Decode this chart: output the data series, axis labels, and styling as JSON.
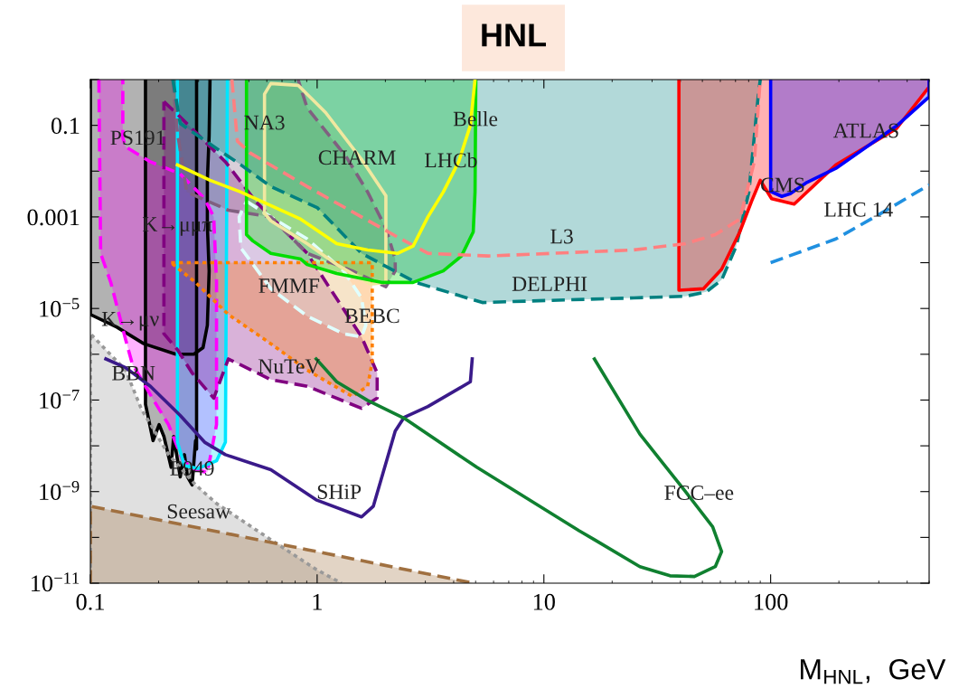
{
  "chart_data": {
    "type": "line",
    "title": "HNL",
    "xlabel": "M$_{HNL}$,  GeV",
    "log": "xy",
    "xlim": [
      0.1,
      500
    ],
    "ylim": [
      1e-11,
      1
    ],
    "xticks": [
      0.1,
      1,
      10,
      100
    ],
    "yticks": [
      {
        "value": 1e-11,
        "label": "10$^{−11}$"
      },
      {
        "value": 1e-10,
        "label": null
      },
      {
        "value": 1e-09,
        "label": "10$^{−9}$"
      },
      {
        "value": 1e-08,
        "label": null
      },
      {
        "value": 1e-07,
        "label": "10$^{−7}$"
      },
      {
        "value": 1e-06,
        "label": null
      },
      {
        "value": 1e-05,
        "label": "10$^{−5}$"
      },
      {
        "value": 0.0001,
        "label": null
      },
      {
        "value": 0.001,
        "label": "0.001"
      },
      {
        "value": 0.01,
        "label": null
      },
      {
        "value": 0.1,
        "label": "0.1"
      },
      {
        "value": 1,
        "label": null
      }
    ],
    "grid": false,
    "series": [
      {
        "type": "area",
        "color": "#000000",
        "line_style": "solid",
        "x": [
          0.1,
          0.1,
          0.131,
          0.172,
          0.238,
          0.286,
          0.314,
          0.328,
          0.334,
          0.328,
          0.328,
          0.334,
          0.337
        ],
        "values": [
          1,
          7.4e-06,
          3.9e-06,
          1.7e-06,
          1e-06,
          1e-06,
          1.4e-06,
          4.3e-06,
          6.6e-05,
          0.00065,
          0.0063,
          0.06,
          1
        ]
      },
      {
        "type": "area",
        "color": "#000000",
        "line_style": "solid",
        "x": [
          0.175,
          0.175,
          0.189,
          0.201,
          0.211,
          0.227,
          0.233,
          0.249,
          0.26,
          0.268,
          0.281,
          0.291,
          0.294,
          0.294
        ],
        "values": [
          1,
          8.1e-08,
          1.3e-08,
          2.9e-08,
          1.6e-08,
          3.4e-09,
          1.6e-08,
          2.1e-09,
          6.4e-09,
          2.1e-09,
          1.4e-09,
          1.3e-08,
          8.5e-09,
          1
        ]
      },
      {
        "type": "area",
        "color": "#999999",
        "line_style": "dotted",
        "x": [
          0.1,
          0.1,
          0.143,
          0.168,
          0.221,
          0.291,
          0.36,
          0.625,
          0.99,
          1.28
        ],
        "values": [
          1e-11,
          2.8e-06,
          4.5e-07,
          6.3e-08,
          6.5e-09,
          1.4e-09,
          5.5e-10,
          8.9e-11,
          2e-11,
          1e-11
        ]
      },
      {
        "type": "area",
        "color": "#a07040",
        "line_style": "dashed",
        "x": [
          0.1,
          0.1,
          0.904,
          4.88
        ],
        "values": [
          1e-11,
          4.8e-10,
          5.4e-11,
          1e-11
        ]
      },
      {
        "type": "area",
        "color": "#ff00ff",
        "line_style": "dashed",
        "x": [
          0.109,
          0.111,
          0.123,
          0.143,
          0.153,
          0.184,
          0.221,
          0.256,
          0.291,
          0.328,
          0.36,
          0.36,
          0.36,
          0.35,
          0.319,
          0.249,
          0.184,
          0.143,
          0.139,
          0.139
        ],
        "values": [
          1,
          0.00016,
          3.7e-05,
          2.1e-06,
          6.2e-07,
          1.3e-07,
          2.9e-08,
          4.7e-09,
          3e-09,
          2.6e-09,
          2.9e-08,
          4.3e-06,
          3.7e-05,
          0.001,
          0.0025,
          0.0087,
          0.016,
          0.034,
          0.054,
          1
        ]
      },
      {
        "type": "area",
        "color": "#00e5ff",
        "line_style": "solid",
        "x": [
          0.242,
          0.242,
          0.26,
          0.299,
          0.36,
          0.394,
          0.402
        ],
        "values": [
          1,
          1.2e-08,
          3.7e-09,
          3.2e-09,
          4.7e-09,
          1.2e-08,
          1
        ]
      },
      {
        "type": "area",
        "color": "#800080",
        "line_style": "dashed",
        "x": [
          0.211,
          0.242,
          0.394,
          0.535,
          0.904,
          1.57,
          1.84,
          1.84,
          1.57,
          0.904,
          0.625,
          0.406,
          0.35,
          0.281,
          0.242,
          0.211
        ],
        "values": [
          0.33,
          0.175,
          0.016,
          0.0022,
          0.00016,
          2.4e-06,
          3.9e-07,
          1.1e-07,
          6.6e-08,
          2e-07,
          2.8e-07,
          7.9e-07,
          1.1e-07,
          3.9e-07,
          1.26e-06,
          2.8e-06
        ]
      },
      {
        "type": "area",
        "color": "#ff8000",
        "line_style": "dotted",
        "x": [
          0.227,
          1.75,
          1.75,
          1.67,
          1.43,
          0.904,
          0.625,
          0.406,
          0.291
        ],
        "values": [
          0.0001,
          0.0001,
          6.9e-07,
          2e-07,
          1.2e-07,
          4.5e-07,
          1.7e-06,
          7.4e-06,
          3.7e-05
        ]
      },
      {
        "type": "area",
        "color": "#e0ffff",
        "line_style": "dashed",
        "x": [
          0.488,
          0.625,
          0.904,
          1.31,
          1.57,
          1.64,
          1.57,
          1.31,
          0.904,
          0.625,
          0.461,
          0.453
        ],
        "values": [
          0.0022,
          0.001,
          0.00033,
          6.6e-05,
          1.7e-05,
          4.3e-06,
          2.4e-06,
          2.8e-06,
          6.8e-06,
          2.7e-05,
          0.00021,
          0.001
        ]
      },
      {
        "type": "area",
        "color": "#806080",
        "line_style": "dashed",
        "x": [
          0.231,
          0.242,
          0.266,
          0.406,
          0.625,
          0.904,
          1.43,
          2.01,
          2.21,
          2.21,
          2.01,
          1.67,
          1.34,
          0.904,
          0.824
        ],
        "values": [
          1,
          0.071,
          0.0035,
          0.0014,
          0.001,
          0.00016,
          6.6e-05,
          3e-05,
          6.6e-05,
          0.00012,
          0.00056,
          0.0035,
          0.021,
          0.24,
          1
        ]
      },
      {
        "type": "area",
        "color": "#f0e8a0",
        "line_style": "solid",
        "x": [
          0.586,
          0.586,
          0.625,
          0.824,
          1.09,
          1.57,
          2.01,
          2.01,
          1.72,
          1.22,
          0.904,
          0.625
        ],
        "values": [
          0.0012,
          0.48,
          0.82,
          0.75,
          0.19,
          0.018,
          0.0029,
          3.7e-05,
          3.4e-05,
          9.1e-05,
          0.00026,
          0.00082
        ]
      },
      {
        "type": "area",
        "color": "#00dd00",
        "line_style": "solid",
        "x": [
          0.488,
          0.488,
          0.52,
          0.625,
          0.847,
          0.904,
          1.22,
          1.94,
          2.65,
          3.6,
          4.33,
          4.88,
          4.97,
          5.01
        ],
        "values": [
          1,
          0.00041,
          0.0003,
          0.00016,
          0.00012,
          9.1e-05,
          5.8e-05,
          3.7e-05,
          3.7e-05,
          6.6e-05,
          0.00014,
          0.00047,
          0.0035,
          1
        ]
      },
      {
        "type": "area",
        "color": "#008080",
        "line_style": "dashed",
        "x": [
          0.231,
          0.249,
          0.337,
          0.461,
          0.625,
          1.0,
          1.57,
          2.73,
          5.35,
          10.6,
          24.9,
          42.1,
          52,
          60.8,
          70.5,
          80.2,
          87.9,
          90
        ],
        "values": [
          1,
          0.11,
          0.039,
          0.0137,
          0.0046,
          0.0016,
          0.00016,
          3.7e-05,
          1.35e-05,
          1.5e-05,
          1.7e-05,
          1.85e-05,
          2.3e-05,
          4.2e-05,
          0.00023,
          0.0035,
          0.38,
          1
        ]
      },
      {
        "color": "#ff8080",
        "line_style": "dashed",
        "x": [
          0.421,
          0.445,
          0.506,
          0.904,
          2.27,
          3.08,
          5.7,
          24.9,
          42.1,
          57,
          73.1,
          84.7,
          90
        ],
        "values": [
          1,
          0.045,
          0.025,
          0.0046,
          0.00036,
          0.00016,
          0.00014,
          0.00019,
          0.00026,
          0.00041,
          0.00089,
          0.016,
          1
        ]
      },
      {
        "color": "#ffff00",
        "line_style": "solid",
        "x": [
          0.242,
          0.337,
          0.461,
          0.847,
          1.22,
          1.67,
          2.27,
          2.65,
          3.08,
          3.6,
          4.21,
          4.74,
          4.97
        ],
        "values": [
          0.0137,
          0.0063,
          0.0035,
          0.00089,
          0.00026,
          0.00019,
          0.00016,
          0.00023,
          0.001,
          0.0035,
          0.016,
          0.1,
          1
        ]
      },
      {
        "type": "area",
        "color": "#ff0000",
        "line_style": "solid",
        "x": [
          39.4,
          39.4,
          50.6,
          60.8,
          73.1,
          82.4,
          90,
          101,
          127,
          194,
          359,
          500,
          500
        ],
        "values": [
          1,
          2.5e-05,
          2.7e-05,
          7.2e-05,
          0.00047,
          0.0022,
          0.0063,
          0.0025,
          0.0019,
          0.0137,
          0.085,
          0.69,
          1
        ]
      },
      {
        "type": "area",
        "color": "#0000ff",
        "line_style": "solid",
        "x": [
          100,
          100,
          112,
          122,
          143,
          194,
          359,
          500,
          500
        ],
        "values": [
          1,
          0.0036,
          0.0028,
          0.0032,
          0.0055,
          0.0115,
          0.097,
          0.42,
          1
        ]
      },
      {
        "color": "#2090e0",
        "line_style": "dashed",
        "x": [
          100,
          194,
          307,
          500
        ],
        "values": [
          0.0001,
          0.00033,
          0.0012,
          0.005
        ]
      },
      {
        "color": "#3a1a8a",
        "line_style": "solid",
        "x": [
          0.117,
          0.143,
          0.184,
          0.249,
          0.319,
          0.394,
          0.625,
          0.99,
          1.57,
          1.77,
          2.21,
          2.42,
          3.08,
          4.74,
          4.83
        ],
        "values": [
          7.9e-07,
          5.1e-07,
          2e-07,
          4.6e-08,
          1.2e-08,
          6.4e-09,
          3e-09,
          6.6e-10,
          2.8e-10,
          4.8e-10,
          2.1e-08,
          4.2e-08,
          7.2e-08,
          2.5e-07,
          7.9e-07
        ]
      },
      {
        "color": "#108030",
        "line_style": "solid",
        "x": [
          0.99,
          1.22,
          1.67,
          2.42,
          5.06,
          14.3,
          16.7,
          26.5,
          36,
          46.1,
          57,
          60.8,
          55.5,
          42.1,
          26.5,
          16.7
        ],
        "values": [
          7.9e-07,
          2.5e-07,
          9.8e-08,
          4e-08,
          3.4e-09,
          1.4e-10,
          8.9e-11,
          2.3e-11,
          1.45e-11,
          1.4e-11,
          2.3e-11,
          4.9e-11,
          1.7e-10,
          1e-09,
          1.8e-08,
          7.9e-07
        ]
      }
    ],
    "annotations": [
      {
        "text": "PS191",
        "x": 0.162,
        "y": 0.0233
      },
      {
        "text": "K→μν",
        "x": 0.15,
        "y": 2.57e-06
      },
      {
        "text": "K→μμπ",
        "x": 0.242,
        "y": 0.0003
      },
      {
        "text": "NA3",
        "x": 0.586,
        "y": 0.05
      },
      {
        "text": "CHARM",
        "x": 1.5,
        "y": 0.0086
      },
      {
        "text": "LHCb",
        "x": 3.89,
        "y": 0.0075
      },
      {
        "text": "Belle",
        "x": 4.99,
        "y": 0.06
      },
      {
        "text": "L3",
        "x": 12,
        "y": 0.000163
      },
      {
        "text": "DELPHI",
        "x": 10.6,
        "y": 1.5e-05
      },
      {
        "text": "FMMF",
        "x": 0.752,
        "y": 1.36e-05
      },
      {
        "text": "BEBC",
        "x": 1.75,
        "y": 3e-06
      },
      {
        "text": "NuTeV",
        "x": 0.752,
        "y": 2.37e-07
      },
      {
        "text": "BBN",
        "x": 0.155,
        "y": 1.68e-07
      },
      {
        "text": "E949",
        "x": 0.281,
        "y": 1.4e-09
      },
      {
        "text": "SHiP",
        "x": 1.25,
        "y": 4.3e-10
      },
      {
        "text": "Seesaw",
        "x": 0.3,
        "y": 1.61e-10
      },
      {
        "text": "FCC–ee",
        "x": 48.3,
        "y": 4.1e-10
      },
      {
        "text": "ATLAS",
        "x": 264,
        "y": 0.0334
      },
      {
        "text": "CMS",
        "x": 113,
        "y": 0.00218
      },
      {
        "text": "LHC 14",
        "x": 244,
        "y": 0.00063
      }
    ]
  }
}
